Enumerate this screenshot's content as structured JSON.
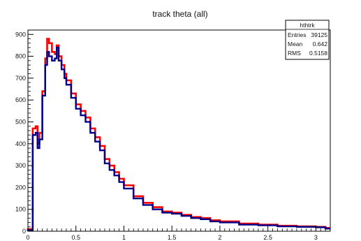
{
  "chart_data": {
    "type": "histogram",
    "title": "track theta (all)",
    "xlabel": "",
    "ylabel": "",
    "xlim": [
      0,
      3.15
    ],
    "ylim": [
      0,
      920
    ],
    "grid": false,
    "x_ticks": [
      0,
      0.5,
      1,
      1.5,
      2,
      2.5,
      3
    ],
    "x_tick_labels": [
      "0",
      "0.5",
      "1",
      "1.5",
      "2",
      "2.5",
      "3"
    ],
    "y_ticks": [
      0,
      100,
      200,
      300,
      400,
      500,
      600,
      700,
      800,
      900
    ],
    "y_tick_labels": [
      "0",
      "100",
      "200",
      "300",
      "400",
      "500",
      "600",
      "700",
      "800",
      "900"
    ],
    "stats_box": {
      "name": "hthtrk",
      "rows": [
        {
          "label": "Entries",
          "value": "39125"
        },
        {
          "label": "Mean",
          "value": "0.642"
        },
        {
          "label": "RMS",
          "value": "0.5158"
        }
      ]
    },
    "series": [
      {
        "color": "#ff0000",
        "x": [
          0.0,
          0.05,
          0.08,
          0.1,
          0.12,
          0.15,
          0.18,
          0.2,
          0.22,
          0.25,
          0.28,
          0.3,
          0.32,
          0.35,
          0.38,
          0.4,
          0.45,
          0.5,
          0.55,
          0.6,
          0.65,
          0.7,
          0.75,
          0.8,
          0.85,
          0.9,
          0.95,
          1.0,
          1.1,
          1.2,
          1.3,
          1.4,
          1.5,
          1.6,
          1.7,
          1.8,
          1.9,
          2.0,
          2.2,
          2.4,
          2.6,
          2.8,
          3.0,
          3.1
        ],
        "y": [
          10,
          470,
          480,
          400,
          450,
          640,
          790,
          880,
          860,
          820,
          810,
          850,
          800,
          760,
          720,
          690,
          630,
          580,
          550,
          520,
          470,
          430,
          390,
          330,
          300,
          270,
          240,
          210,
          160,
          130,
          110,
          90,
          85,
          75,
          65,
          60,
          50,
          45,
          35,
          30,
          25,
          22,
          20,
          15
        ]
      },
      {
        "color": "#00008b",
        "x": [
          0.0,
          0.05,
          0.08,
          0.1,
          0.12,
          0.15,
          0.18,
          0.2,
          0.22,
          0.25,
          0.28,
          0.3,
          0.32,
          0.35,
          0.38,
          0.4,
          0.45,
          0.5,
          0.55,
          0.6,
          0.65,
          0.7,
          0.75,
          0.8,
          0.85,
          0.9,
          0.95,
          1.0,
          1.1,
          1.2,
          1.3,
          1.4,
          1.5,
          1.6,
          1.7,
          1.8,
          1.9,
          2.0,
          2.2,
          2.4,
          2.6,
          2.8,
          3.0,
          3.1
        ],
        "y": [
          5,
          440,
          450,
          380,
          420,
          620,
          760,
          820,
          800,
          780,
          790,
          840,
          780,
          740,
          700,
          670,
          610,
          560,
          530,
          500,
          450,
          410,
          370,
          310,
          280,
          255,
          225,
          195,
          150,
          120,
          100,
          85,
          80,
          70,
          60,
          55,
          45,
          40,
          30,
          27,
          22,
          20,
          18,
          12
        ]
      }
    ]
  }
}
